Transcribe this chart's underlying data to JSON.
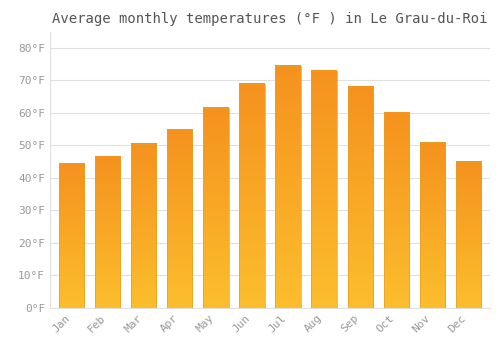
{
  "title": "Average monthly temperatures (°F ) in Le Grau-du-Roi",
  "months": [
    "Jan",
    "Feb",
    "Mar",
    "Apr",
    "May",
    "Jun",
    "Jul",
    "Aug",
    "Sep",
    "Oct",
    "Nov",
    "Dec"
  ],
  "values": [
    44.5,
    46.5,
    50.5,
    55.0,
    61.5,
    69.0,
    74.5,
    73.0,
    68.0,
    60.0,
    51.0,
    45.0
  ],
  "bar_color_top": "#FCBE2D",
  "bar_color_bottom": "#F5921E",
  "background_color": "#FFFFFF",
  "grid_color": "#E0E0E0",
  "ytick_labels": [
    "0°F",
    "10°F",
    "20°F",
    "30°F",
    "40°F",
    "50°F",
    "60°F",
    "70°F",
    "80°F"
  ],
  "ytick_values": [
    0,
    10,
    20,
    30,
    40,
    50,
    60,
    70,
    80
  ],
  "ylim": [
    0,
    85
  ],
  "title_fontsize": 10,
  "tick_fontsize": 8,
  "tick_color": "#999999",
  "title_color": "#555555",
  "bar_width": 0.7
}
